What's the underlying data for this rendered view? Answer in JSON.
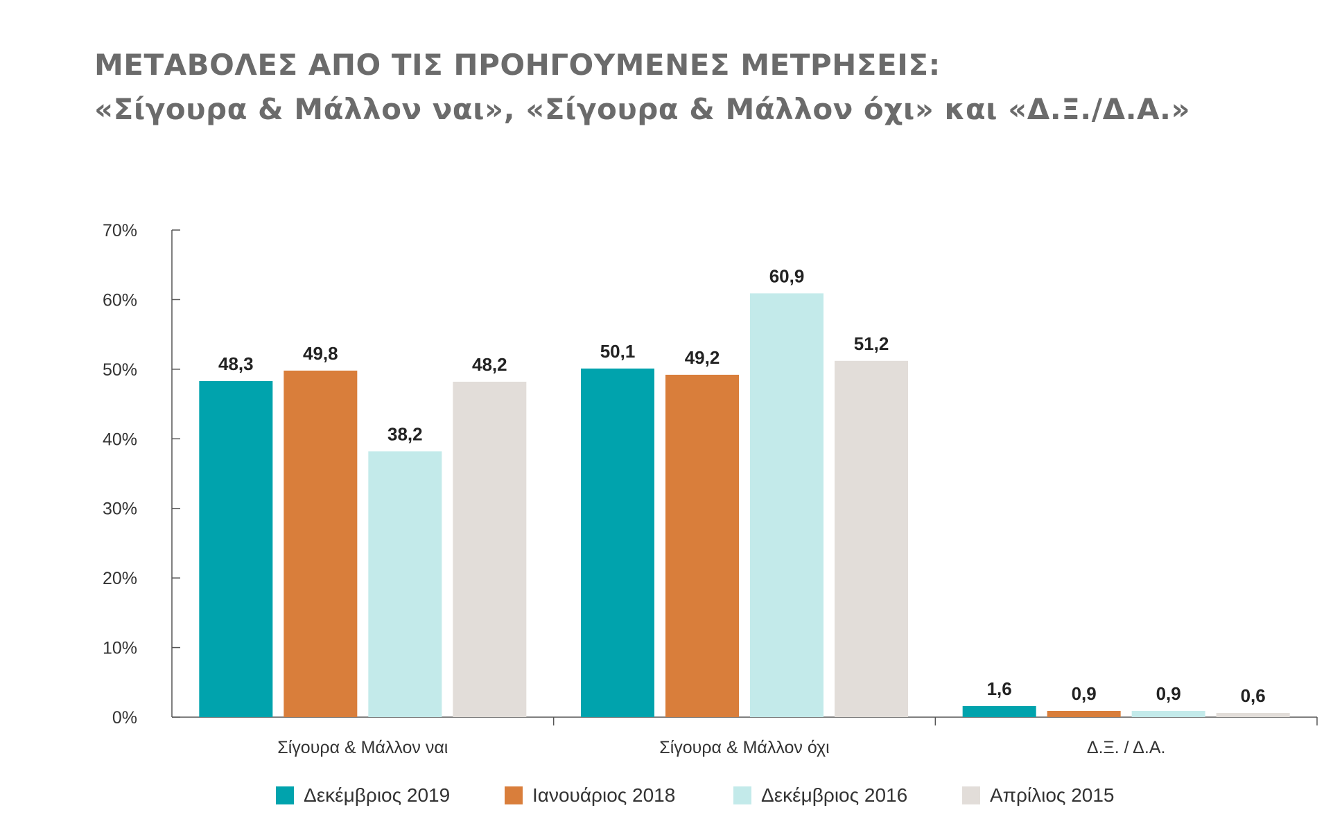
{
  "title": {
    "line1": "ΜΕΤΑΒΟΛΕΣ ΑΠΟ ΤΙΣ ΠΡΟΗΓΟΥΜΕΝΕΣ ΜΕΤΡΗΣΕΙΣ:",
    "line2": "«Σίγουρα & Μάλλον ναι», «Σίγουρα & Μάλλον όχι» και «Δ.Ξ./Δ.Α.»"
  },
  "chart_data": {
    "type": "bar",
    "categories": [
      "Σίγουρα & Μάλλον ναι",
      "Σίγουρα & Μάλλον όχι",
      "Δ.Ξ. / Δ.Α."
    ],
    "series": [
      {
        "name": "Δεκέμβριος 2019",
        "color": "#00A3AD",
        "values": [
          48.3,
          50.1,
          1.6
        ],
        "labels": [
          "48,3",
          "50,1",
          "1,6"
        ]
      },
      {
        "name": "Ιανουάριος 2018",
        "color": "#D97E3B",
        "values": [
          49.8,
          49.2,
          0.9
        ],
        "labels": [
          "49,8",
          "49,2",
          "0,9"
        ]
      },
      {
        "name": "Δεκέμβριος 2016",
        "color": "#C3EAEA",
        "values": [
          38.2,
          60.9,
          0.9
        ],
        "labels": [
          "38,2",
          "60,9",
          "0,9"
        ]
      },
      {
        "name": "Απρίλιος 2015",
        "color": "#E2DDD9",
        "values": [
          48.2,
          51.2,
          0.6
        ],
        "labels": [
          "48,2",
          "51,2",
          "0,6"
        ]
      }
    ],
    "ylim": [
      0,
      70
    ],
    "yticks": [
      "0%",
      "10%",
      "20%",
      "30%",
      "40%",
      "50%",
      "60%",
      "70%"
    ],
    "legend_position": "bottom",
    "grid": false
  }
}
